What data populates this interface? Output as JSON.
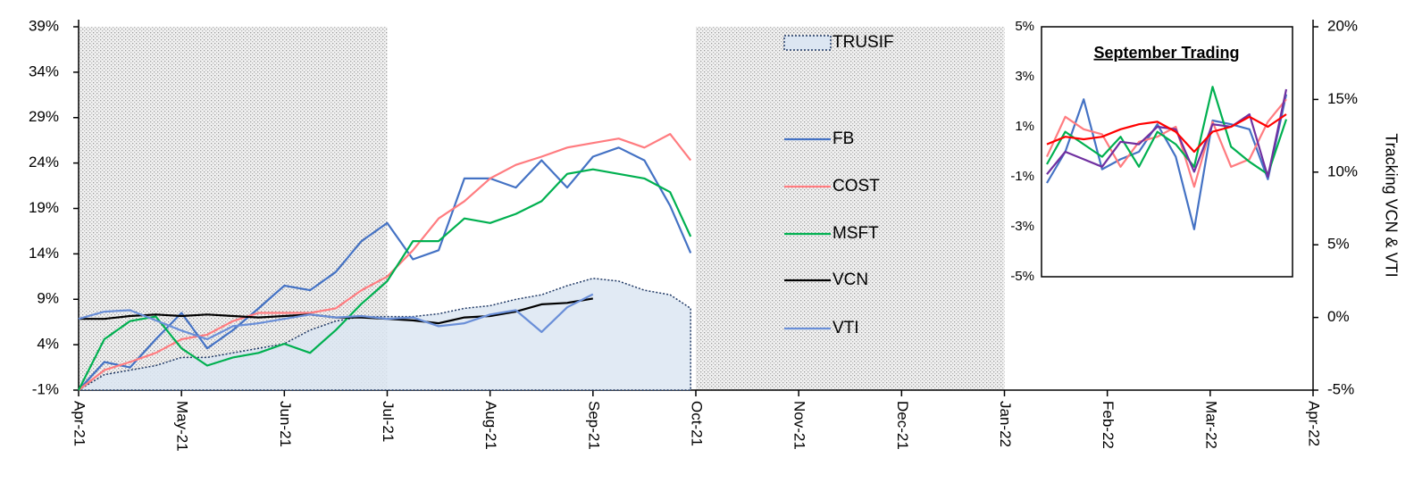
{
  "chart_data": [
    {
      "type": "line",
      "xlim": [
        0,
        12
      ],
      "xticks": [
        {
          "value": 0,
          "label": "Apr-21"
        },
        {
          "value": 1,
          "label": "May-21"
        },
        {
          "value": 2,
          "label": "Jun-21"
        },
        {
          "value": 3,
          "label": "Jul-21"
        },
        {
          "value": 4,
          "label": "Aug-21"
        },
        {
          "value": 5,
          "label": "Sep-21"
        },
        {
          "value": 6,
          "label": "Oct-21"
        },
        {
          "value": 7,
          "label": "Nov-21"
        },
        {
          "value": 8,
          "label": "Dec-21"
        },
        {
          "value": 9,
          "label": "Jan-22"
        },
        {
          "value": 10,
          "label": "Feb-22"
        },
        {
          "value": 11,
          "label": "Mar-22"
        },
        {
          "value": 12,
          "label": "Apr-22"
        }
      ],
      "ylim": [
        -1,
        39
      ],
      "yticks": [
        {
          "value": -1,
          "label": "-1%"
        },
        {
          "value": 4,
          "label": "4%"
        },
        {
          "value": 9,
          "label": "9%"
        },
        {
          "value": 14,
          "label": "14%"
        },
        {
          "value": 19,
          "label": "19%"
        },
        {
          "value": 24,
          "label": "24%"
        },
        {
          "value": 29,
          "label": "29%"
        },
        {
          "value": 34,
          "label": "34%"
        },
        {
          "value": 39,
          "label": "39%"
        }
      ],
      "y2lim": [
        -5,
        20
      ],
      "y2ticks": [
        {
          "value": -5,
          "label": "-5%"
        },
        {
          "value": 0,
          "label": "0%"
        },
        {
          "value": 5,
          "label": "5%"
        },
        {
          "value": 10,
          "label": "10%"
        },
        {
          "value": 15,
          "label": "15%"
        },
        {
          "value": 20,
          "label": "20%"
        }
      ],
      "y2_label": "Tracking VCN & VTI",
      "shaded_spans": [
        [
          0,
          3
        ],
        [
          6,
          9
        ]
      ],
      "x": [
        0,
        0.25,
        0.5,
        0.75,
        1,
        1.25,
        1.5,
        1.75,
        2,
        2.25,
        2.5,
        2.75,
        3,
        3.25,
        3.5,
        3.75,
        4,
        4.25,
        4.5,
        4.75,
        5,
        5.25,
        5.5,
        5.75,
        5.95
      ],
      "series": [
        {
          "name": "TRUSIF",
          "color": "#1f3864",
          "fill": "#dce6f2",
          "values": [
            -1,
            0.7,
            1.2,
            1.7,
            2.6,
            2.6,
            3.1,
            3.6,
            4.1,
            5.6,
            6.6,
            7.1,
            7.1,
            7.1,
            7.4,
            8,
            8.3,
            9,
            9.5,
            10.5,
            11.3,
            11,
            10,
            9.5,
            8
          ]
        },
        {
          "name": "FB",
          "color": "#4472c4",
          "values": [
            -1,
            2.1,
            1.5,
            4.6,
            7.5,
            3.6,
            5.6,
            8,
            10.5,
            10,
            12,
            15.4,
            17.4,
            13.4,
            14.4,
            22.3,
            22.3,
            21.3,
            24.3,
            21.3,
            24.7,
            25.7,
            24.3,
            19.3,
            14.1
          ]
        },
        {
          "name": "COST",
          "color": "#ff7c80",
          "values": [
            -1,
            1.2,
            2.1,
            3.1,
            4.6,
            5.1,
            6.6,
            7.5,
            7.5,
            7.5,
            8,
            10,
            11.5,
            14.4,
            17.9,
            19.8,
            22.3,
            23.8,
            24.7,
            25.7,
            26.2,
            26.7,
            25.7,
            27.2,
            24.3
          ]
        },
        {
          "name": "MSFT",
          "color": "#00b050",
          "values": [
            -1,
            4.6,
            6.6,
            7.1,
            3.6,
            1.7,
            2.6,
            3.1,
            4.1,
            3.1,
            5.6,
            8.5,
            11,
            15.4,
            15.4,
            17.9,
            17.4,
            18.4,
            19.8,
            22.8,
            23.3,
            22.8,
            22.3,
            20.8,
            15.9
          ]
        },
        {
          "name": "VCN",
          "color": "#000000",
          "axis": "y2",
          "values": [
            -0.1,
            -0.1,
            0.1,
            0.2,
            0.1,
            0.2,
            0.1,
            0,
            0.1,
            0.2,
            0,
            0,
            -0.1,
            -0.2,
            -0.4,
            0,
            0.1,
            0.4,
            0.9,
            1.0,
            1.3,
            null,
            null,
            null,
            null
          ]
        },
        {
          "name": "VTI",
          "color": "#6a8fd8",
          "axis": "y2",
          "values": [
            -0.1,
            0.4,
            0.5,
            -0.2,
            -0.9,
            -1.5,
            -0.6,
            -0.4,
            -0.1,
            0.2,
            0,
            0.1,
            -0.1,
            0,
            -0.6,
            -0.4,
            0.2,
            0.5,
            -1.0,
            0.7,
            1.6,
            null,
            null,
            null,
            null
          ]
        }
      ]
    },
    {
      "type": "line",
      "title": "September Trading",
      "ylim": [
        -5,
        5
      ],
      "yticks": [
        {
          "value": 5,
          "label": "5%"
        },
        {
          "value": 3,
          "label": "3%"
        },
        {
          "value": 1,
          "label": "1%"
        },
        {
          "value": -1,
          "label": "-1%"
        },
        {
          "value": -3,
          "label": "-3%"
        },
        {
          "value": -5,
          "label": "-5%"
        }
      ],
      "series": [
        {
          "color": "#4472c4",
          "values": [
            -1.25,
            0,
            2.1,
            -0.7,
            -0.3,
            0,
            1.1,
            -0.2,
            -3.1,
            1.25,
            1.1,
            0.9,
            -1.1,
            2.3
          ]
        },
        {
          "color": "#ff7c80",
          "values": [
            -0.2,
            1.4,
            0.9,
            0.7,
            -0.6,
            0.4,
            0.6,
            1.0,
            -1.4,
            1.2,
            -0.6,
            -0.3,
            1.2,
            2.1
          ]
        },
        {
          "color": "#00b050",
          "values": [
            -0.5,
            0.8,
            0.3,
            -0.2,
            0.6,
            -0.6,
            0.8,
            0.3,
            -0.6,
            2.6,
            0.2,
            -0.4,
            -0.9,
            1.3
          ]
        },
        {
          "color": "#7030a0",
          "values": [
            -0.9,
            0,
            -0.3,
            -0.6,
            0.4,
            0.3,
            1.0,
            0.9,
            -0.8,
            1.1,
            1.0,
            1.5,
            -1.0,
            2.5
          ]
        },
        {
          "color": "#ff0000",
          "values": [
            0.3,
            0.6,
            0.5,
            0.6,
            0.9,
            1.1,
            1.2,
            0.8,
            0,
            0.8,
            1.0,
            1.4,
            1.0,
            1.5
          ]
        }
      ]
    }
  ]
}
